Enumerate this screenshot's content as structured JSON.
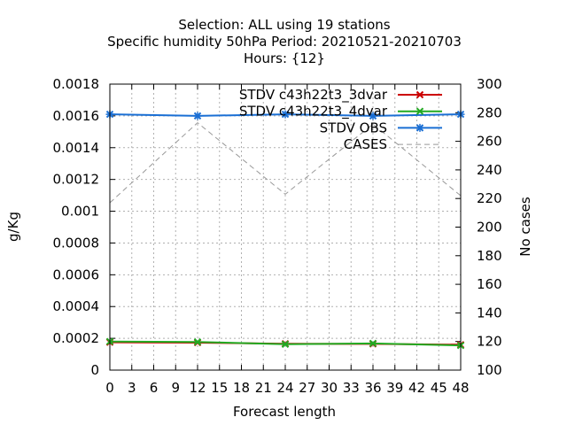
{
  "chart_data": {
    "type": "line",
    "title_lines": [
      "Selection: ALL using    19 stations",
      "Specific humidity 50hPa   Period: 20210521-20210703",
      "Hours: {12}"
    ],
    "xlabel": "Forecast length",
    "ylabel": "g/Kg",
    "y2label": "No cases",
    "xlim": [
      0,
      48
    ],
    "ylim": [
      0,
      0.0018
    ],
    "y2lim": [
      100,
      300
    ],
    "x_ticks": [
      "0",
      "3",
      "6",
      "9",
      "12",
      "15",
      "18",
      "21",
      "24",
      "27",
      "30",
      "33",
      "36",
      "39",
      "42",
      "45",
      "48"
    ],
    "y_ticks": [
      "0",
      "0.0002",
      "0.0004",
      "0.0006",
      "0.0008",
      "0.001",
      "0.0012",
      "0.0014",
      "0.0016",
      "0.0018"
    ],
    "y2_ticks": [
      "100",
      "120",
      "140",
      "160",
      "180",
      "200",
      "220",
      "240",
      "260",
      "280",
      "300"
    ],
    "grid": true,
    "legend_position": "top-right",
    "series": [
      {
        "name": "STDV c43h22t3_3dvar",
        "axis": "y",
        "color": "#cc0000",
        "marker": "x",
        "x": [
          0,
          12,
          24,
          36,
          48
        ],
        "values": [
          0.000175,
          0.000173,
          0.000166,
          0.000165,
          0.00016
        ]
      },
      {
        "name": "STDV c43h22t3_4dvar",
        "axis": "y",
        "color": "#22aa22",
        "marker": "x",
        "x": [
          0,
          12,
          24,
          36,
          48
        ],
        "values": [
          0.00018,
          0.000177,
          0.000163,
          0.000168,
          0.000155
        ]
      },
      {
        "name": "STDV OBS",
        "axis": "y",
        "color": "#1a6fd4",
        "marker": "asterisk",
        "x": [
          0,
          12,
          24,
          36,
          48
        ],
        "values": [
          0.00161,
          0.0016,
          0.00161,
          0.0016,
          0.00161
        ]
      },
      {
        "name": "CASES",
        "axis": "y2",
        "color": "#999999",
        "marker": "none",
        "dashed": true,
        "x": [
          0,
          12,
          24,
          36,
          48
        ],
        "values": [
          217,
          273,
          223,
          272,
          222
        ]
      }
    ]
  }
}
